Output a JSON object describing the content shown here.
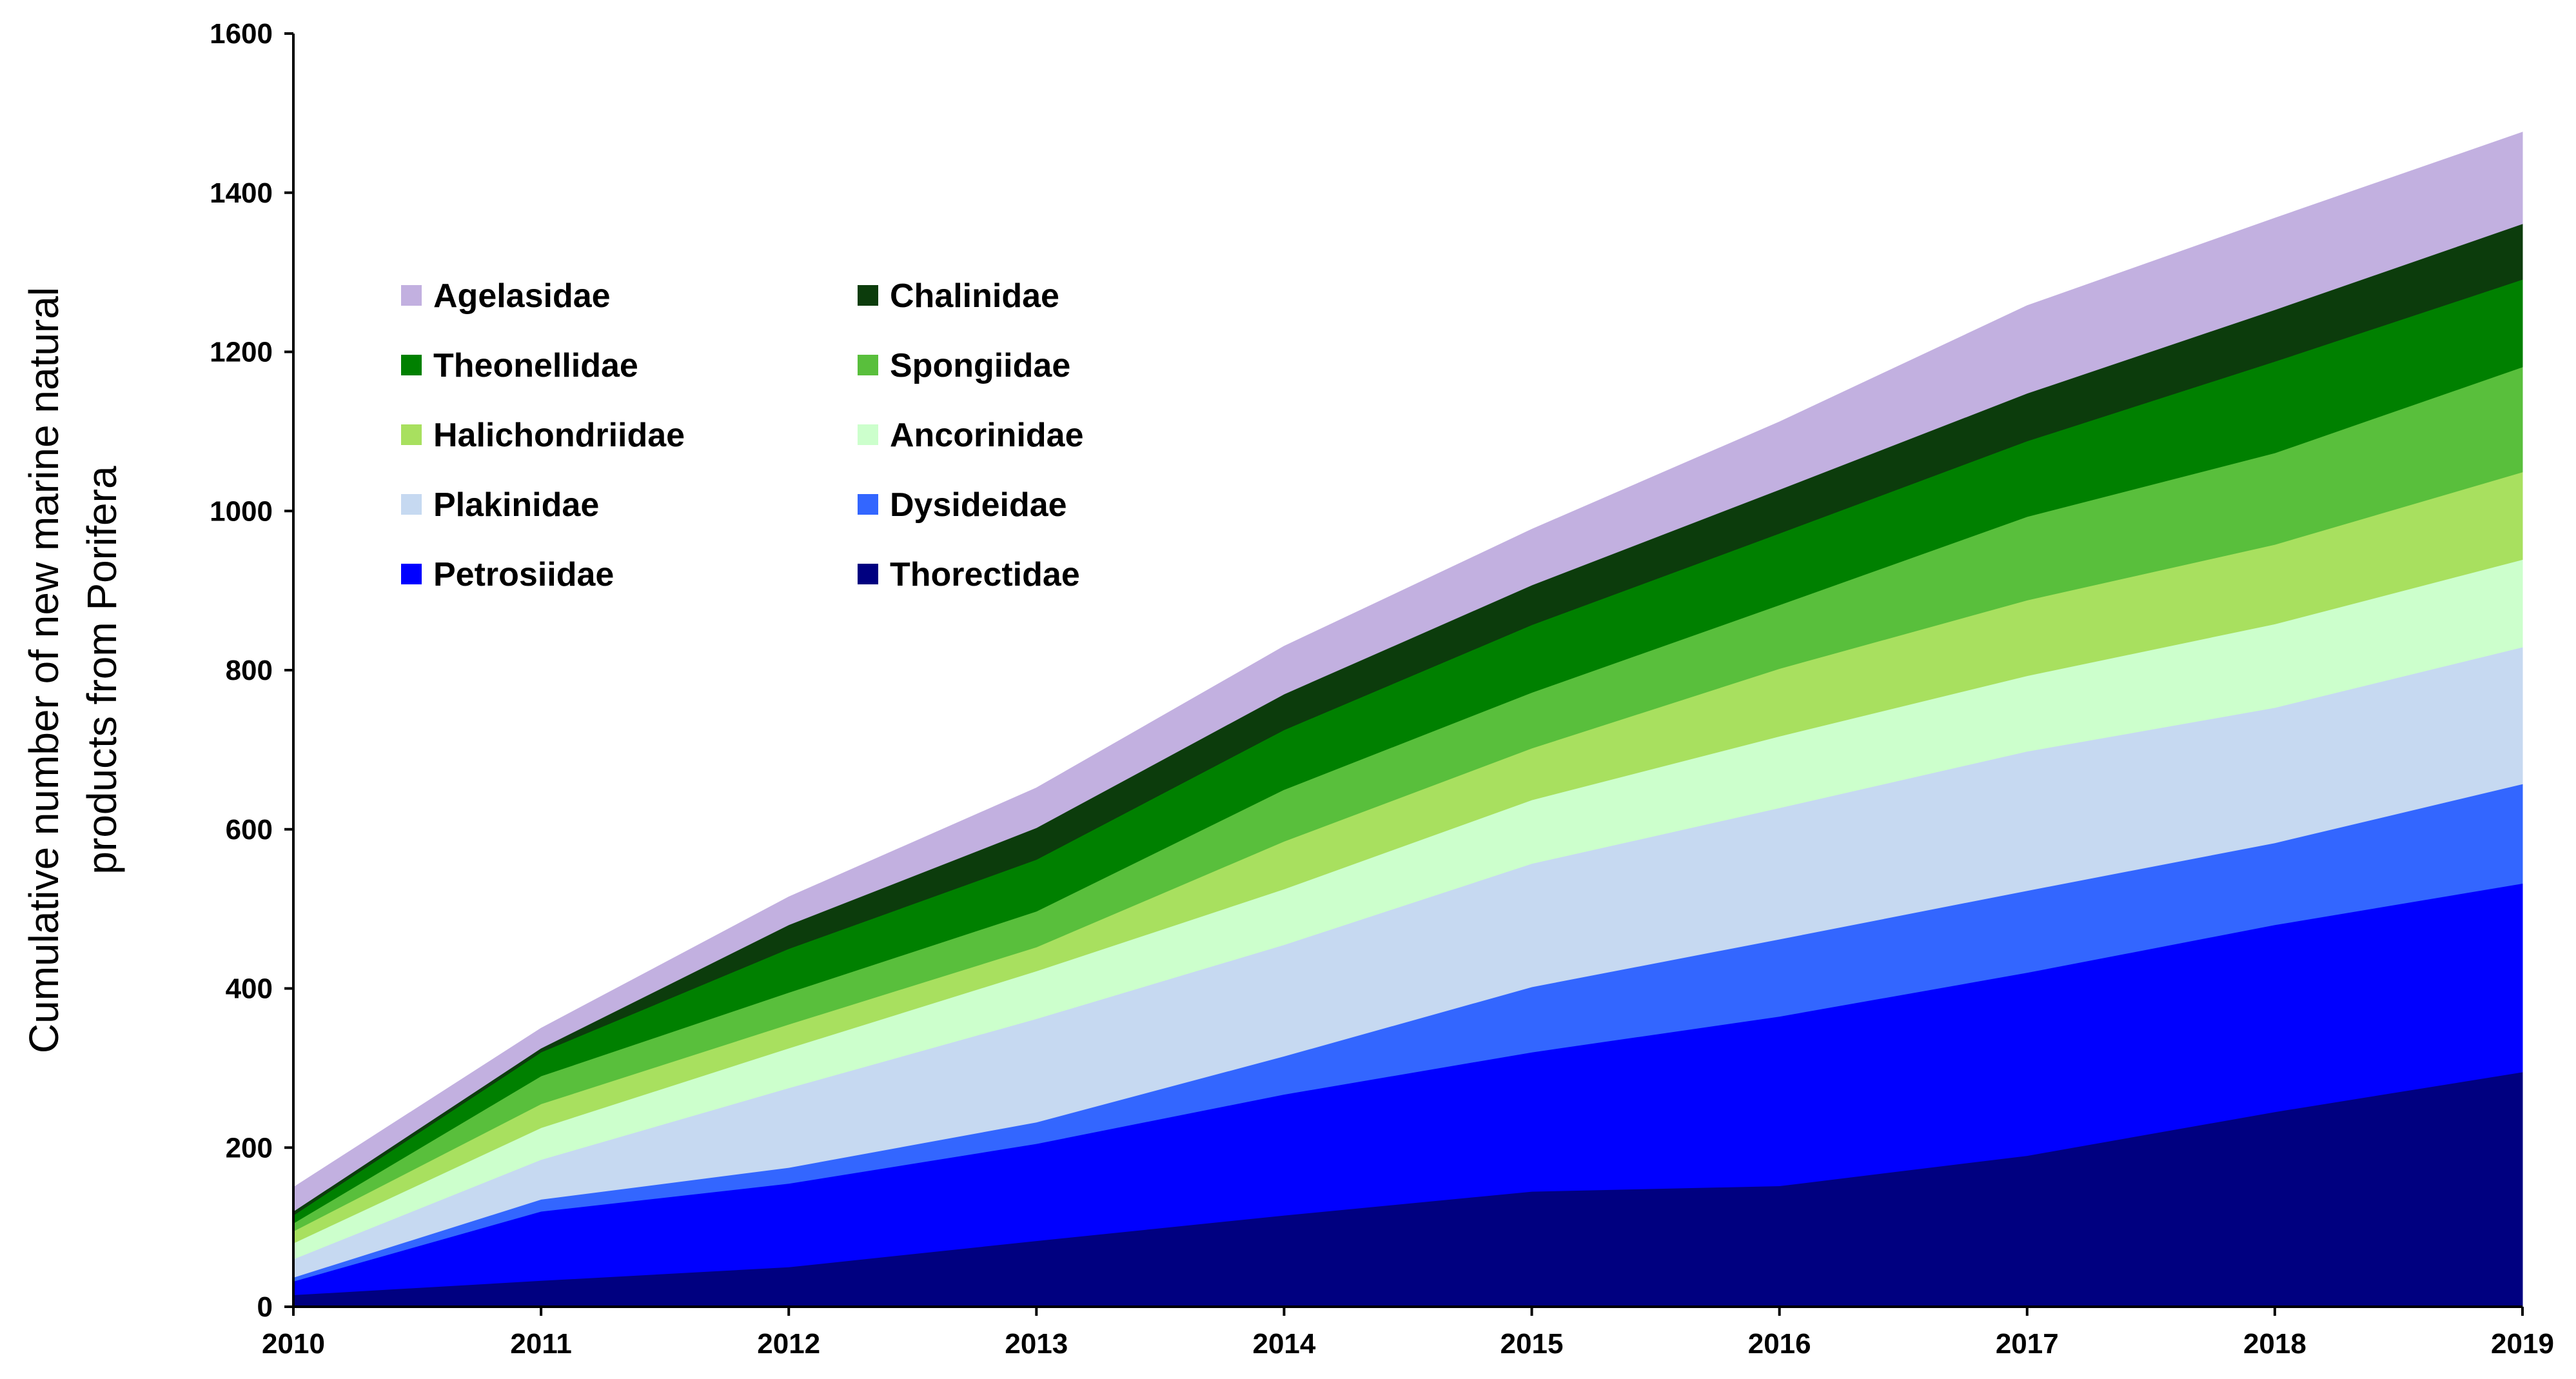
{
  "chart_data": {
    "type": "area",
    "stacked": true,
    "title": "",
    "ylabel_lines": [
      "Cumulative number of new marine natural",
      "products from Porifera"
    ],
    "xlabel": "",
    "x": [
      2010,
      2011,
      2012,
      2013,
      2014,
      2015,
      2016,
      2017,
      2018,
      2019
    ],
    "ylim": [
      0,
      1600
    ],
    "yticks": [
      0,
      200,
      400,
      600,
      800,
      1000,
      1200,
      1400,
      1600
    ],
    "legend_position": "upper-left",
    "series": [
      {
        "name": "Thorectidae",
        "color": "#000080",
        "values": [
          15,
          33,
          50,
          83,
          115,
          145,
          152,
          190,
          245,
          295
        ]
      },
      {
        "name": "Petrosiidae",
        "color": "#0000ff",
        "values": [
          17,
          87,
          105,
          122,
          152,
          175,
          213,
          230,
          235,
          237
        ]
      },
      {
        "name": "Dysideidae",
        "color": "#3366ff",
        "values": [
          5,
          15,
          20,
          27,
          48,
          82,
          97,
          103,
          103,
          125
        ]
      },
      {
        "name": "Plakinidae",
        "color": "#c6d9f1",
        "values": [
          23,
          50,
          100,
          130,
          140,
          155,
          165,
          175,
          170,
          172
        ]
      },
      {
        "name": "Ancorinidae",
        "color": "#ccffcc",
        "values": [
          20,
          40,
          50,
          60,
          70,
          80,
          90,
          95,
          105,
          110
        ]
      },
      {
        "name": "Halichondriidae",
        "color": "#a8e05f",
        "values": [
          15,
          30,
          30,
          30,
          60,
          65,
          85,
          95,
          100,
          110
        ]
      },
      {
        "name": "Spongiidae",
        "color": "#59bf3c",
        "values": [
          10,
          35,
          40,
          45,
          65,
          70,
          80,
          105,
          115,
          132
        ]
      },
      {
        "name": "Theonellidae",
        "color": "#008000",
        "values": [
          10,
          30,
          55,
          65,
          75,
          85,
          90,
          95,
          115,
          110
        ]
      },
      {
        "name": "Chalinidae",
        "color": "#0c3c0c",
        "values": [
          5,
          5,
          30,
          40,
          45,
          50,
          55,
          60,
          65,
          70
        ]
      },
      {
        "name": "Agelasidae",
        "color": "#c2b0e0",
        "values": [
          30,
          25,
          35,
          50,
          60,
          70,
          85,
          110,
          115,
          115
        ]
      }
    ],
    "legend": [
      [
        "Agelasidae",
        "Chalinidae"
      ],
      [
        "Theonellidae",
        "Spongiidae"
      ],
      [
        "Halichondriidae",
        "Ancorinidae"
      ],
      [
        "Plakinidae",
        "Dysideidae"
      ],
      [
        "Petrosiidae",
        "Thorectidae"
      ]
    ]
  }
}
